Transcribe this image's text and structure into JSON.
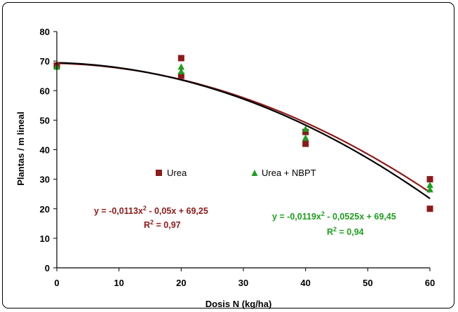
{
  "chart_data": {
    "type": "scatter",
    "title": "",
    "xlabel": "Dosis N (kg/ha)",
    "ylabel": "Plantas / m lineal",
    "xlim": [
      0,
      60
    ],
    "ylim": [
      0,
      80
    ],
    "x_ticks": [
      "0",
      "10",
      "20",
      "30",
      "40",
      "50",
      "60"
    ],
    "y_ticks": [
      "0",
      "10",
      "20",
      "30",
      "40",
      "50",
      "60",
      "70",
      "80"
    ],
    "grid": false,
    "legend": "inside-center",
    "series": [
      {
        "name": "Urea",
        "color": "#8B1A1A",
        "marker": "square",
        "points": [
          [
            0,
            68.5
          ],
          [
            20,
            71
          ],
          [
            20,
            65
          ],
          [
            40,
            46
          ],
          [
            40,
            42
          ],
          [
            60,
            30
          ],
          [
            60,
            20
          ]
        ],
        "fit": {
          "a": -0.0113,
          "b": -0.05,
          "c": 69.25
        },
        "equation_prefix": "y = -0,0113x",
        "equation_suffix": " - 0,05x + 69,25",
        "r2_value": " = 0,97"
      },
      {
        "name": "Urea + NBPT",
        "color": "#1E9E1E",
        "marker": "triangle",
        "points": [
          [
            0,
            68
          ],
          [
            20,
            68
          ],
          [
            20,
            66.5
          ],
          [
            40,
            47
          ],
          [
            40,
            44
          ],
          [
            60,
            28
          ],
          [
            60,
            26.5
          ]
        ],
        "fit": {
          "a": -0.0119,
          "b": -0.0525,
          "c": 69.45
        },
        "fit_line_color": "#000000",
        "equation_prefix": "y = -0,0119x",
        "equation_suffix": " - 0,0525x + 69,45",
        "r2_value": " = 0,94"
      }
    ]
  }
}
